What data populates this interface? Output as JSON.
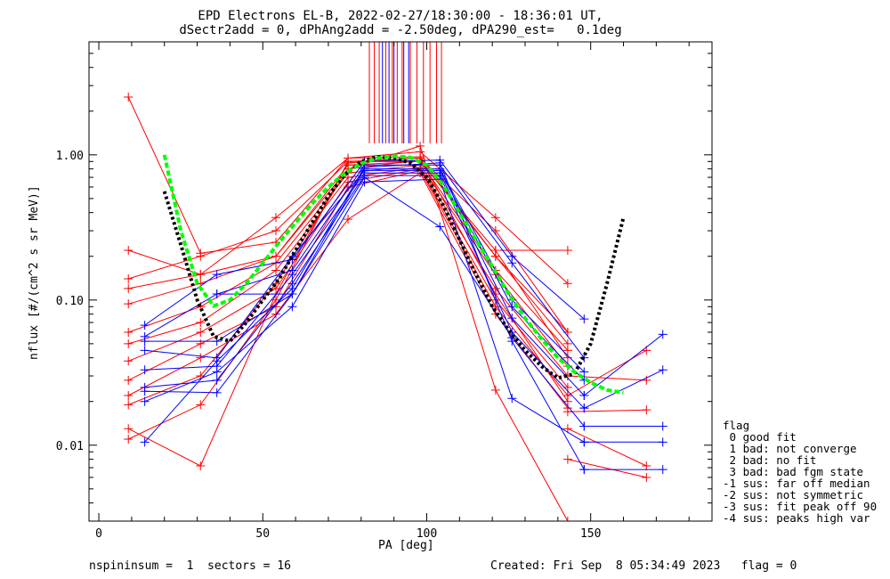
{
  "title_line1": "EPD Electrons EL-B, 2022-02-27/18:30:00 - 18:36:01 UT,",
  "title_line2": "dSectr2add = 0, dPhAng2add = -2.50deg, dPA290_est=   0.1deg",
  "footer": {
    "left": "nspininsum =  1  sectors = 16",
    "right": "Created: Fri Sep  8 05:34:49 2023   flag = 0"
  },
  "legend": {
    "title": "flag",
    "items": [
      " 0 good fit",
      " 1 bad: not converge",
      " 2 bad: no fit",
      " 3 bad: bad fgm state",
      "-1 sus: far off median",
      "-2 sus: not symmetric",
      "-3 sus: fit peak off 90",
      "-4 sus: peaks high var"
    ]
  },
  "colors": {
    "red": "#ff0000",
    "blue": "#0000ff",
    "green": "#00ff00",
    "black": "#000000"
  },
  "chart_data": {
    "type": "line",
    "xlabel": "PA [deg]",
    "ylabel": "nflux [#/(cm^2 s sr MeV)]",
    "xlim": [
      -3,
      187
    ],
    "ylim": [
      0.003,
      6
    ],
    "yscale": "log",
    "xticks": [
      0,
      50,
      100,
      150
    ],
    "yticks": [
      0.01,
      0.1,
      1.0
    ],
    "ytick_labels": [
      "0.01",
      "0.10",
      "1.00"
    ],
    "vertical_lines": {
      "red": [
        82.5,
        84,
        85.5,
        87.5,
        89.5,
        91,
        92.5,
        95,
        97,
        99,
        101,
        103,
        104.5
      ],
      "blue": [
        86.5,
        88.5,
        90,
        93,
        94.5
      ]
    },
    "series": [
      {
        "color": "red",
        "x": [
          9,
          31,
          54,
          76,
          98,
          121,
          143
        ],
        "y": [
          0.22,
          0.15,
          0.37,
          0.95,
          1.05,
          0.37,
          0.13
        ]
      },
      {
        "color": "red",
        "x": [
          9,
          31,
          54,
          76,
          98,
          121,
          143
        ],
        "y": [
          0.14,
          0.2,
          0.3,
          0.9,
          0.95,
          0.3,
          0.06
        ]
      },
      {
        "color": "red",
        "x": [
          9,
          31,
          54,
          76,
          98,
          121,
          143
        ],
        "y": [
          0.12,
          0.15,
          0.2,
          0.85,
          0.9,
          0.22,
          0.04
        ]
      },
      {
        "color": "red",
        "x": [
          9,
          31,
          54,
          76,
          98,
          121,
          143
        ],
        "y": [
          0.094,
          0.13,
          0.2,
          0.8,
          0.92,
          0.2,
          0.05
        ]
      },
      {
        "color": "red",
        "x": [
          9,
          31,
          54,
          76,
          98,
          121,
          143
        ],
        "y": [
          0.06,
          0.09,
          0.18,
          0.75,
          0.85,
          0.15,
          0.035
        ]
      },
      {
        "color": "red",
        "x": [
          9,
          31,
          54,
          76,
          98,
          121,
          143
        ],
        "y": [
          0.05,
          0.07,
          0.16,
          0.7,
          0.82,
          0.12,
          0.03
        ]
      },
      {
        "color": "red",
        "x": [
          9,
          31,
          54,
          76,
          98,
          121,
          143
        ],
        "y": [
          0.038,
          0.06,
          0.12,
          0.65,
          0.8,
          0.1,
          0.025
        ]
      },
      {
        "color": "red",
        "x": [
          9,
          31,
          54,
          76,
          98,
          121,
          143
        ],
        "y": [
          0.028,
          0.05,
          0.09,
          0.6,
          0.78,
          0.09,
          0.022
        ]
      },
      {
        "color": "red",
        "x": [
          9,
          31,
          54,
          76,
          98,
          121,
          143
        ],
        "y": [
          0.022,
          0.04,
          0.08,
          0.36,
          0.75,
          0.08,
          0.018
        ]
      },
      {
        "color": "red",
        "x": [
          9,
          31,
          54,
          76,
          98,
          121,
          143
        ],
        "y": [
          0.019,
          0.03,
          0.13,
          0.8,
          1.15,
          0.024,
          0.003
        ]
      },
      {
        "color": "red",
        "x": [
          9,
          31,
          54,
          76,
          98,
          121,
          143
        ],
        "y": [
          0.013,
          0.0072,
          0.11,
          0.88,
          0.95,
          0.11,
          0.02
        ]
      },
      {
        "color": "red",
        "x": [
          9,
          31,
          54,
          76,
          98,
          121,
          143
        ],
        "y": [
          0.011,
          0.019,
          0.1,
          0.9,
          0.9,
          0.16,
          0.045
        ]
      },
      {
        "color": "red",
        "x": [
          9,
          31,
          54,
          76,
          98,
          121,
          143
        ],
        "y": [
          2.5,
          0.21,
          0.25,
          0.95,
          0.97,
          0.2,
          0.06
        ]
      },
      {
        "color": "red",
        "x": [
          121,
          143
        ],
        "y": [
          0.22,
          0.22
        ]
      },
      {
        "color": "red",
        "x": [
          143,
          167
        ],
        "y": [
          0.022,
          0.045
        ]
      },
      {
        "color": "red",
        "x": [
          143,
          167
        ],
        "y": [
          0.03,
          0.028
        ]
      },
      {
        "color": "red",
        "x": [
          143,
          167
        ],
        "y": [
          0.017,
          0.0175
        ]
      },
      {
        "color": "red",
        "x": [
          143,
          167
        ],
        "y": [
          0.013,
          0.0072
        ]
      },
      {
        "color": "red",
        "x": [
          143,
          167
        ],
        "y": [
          0.008,
          0.006
        ]
      },
      {
        "color": "blue",
        "x": [
          14,
          36,
          59,
          81,
          104,
          126,
          148
        ],
        "y": [
          0.067,
          0.15,
          0.19,
          0.9,
          0.92,
          0.2,
          0.074
        ]
      },
      {
        "color": "blue",
        "x": [
          14,
          36,
          59,
          81,
          104,
          126,
          148
        ],
        "y": [
          0.056,
          0.11,
          0.16,
          0.85,
          0.85,
          0.18,
          0.04
        ]
      },
      {
        "color": "blue",
        "x": [
          14,
          36,
          59,
          81,
          104,
          126,
          148
        ],
        "y": [
          0.052,
          0.052,
          0.11,
          0.8,
          0.8,
          0.1,
          0.032
        ]
      },
      {
        "color": "blue",
        "x": [
          14,
          36,
          59,
          81,
          104,
          126,
          148
        ],
        "y": [
          0.045,
          0.04,
          0.2,
          0.78,
          0.78,
          0.09,
          0.028
        ]
      },
      {
        "color": "blue",
        "x": [
          14,
          36,
          59,
          81,
          104,
          126,
          148
        ],
        "y": [
          0.033,
          0.035,
          0.15,
          0.75,
          0.75,
          0.075,
          0.022
        ]
      },
      {
        "color": "blue",
        "x": [
          14,
          36,
          59,
          81,
          104,
          126,
          148
        ],
        "y": [
          0.025,
          0.028,
          0.13,
          0.72,
          0.72,
          0.06,
          0.018
        ]
      },
      {
        "color": "blue",
        "x": [
          14,
          36,
          59,
          81,
          104,
          126,
          148
        ],
        "y": [
          0.0235,
          0.023,
          0.11,
          0.7,
          0.32,
          0.055,
          0.0135
        ]
      },
      {
        "color": "blue",
        "x": [
          14,
          36,
          59,
          81,
          104,
          126,
          148
        ],
        "y": [
          0.02,
          0.032,
          0.09,
          0.65,
          0.68,
          0.021,
          0.0105
        ]
      },
      {
        "color": "blue",
        "x": [
          14,
          36,
          59,
          81,
          104,
          126,
          148
        ],
        "y": [
          0.0105,
          0.038,
          0.12,
          0.82,
          0.88,
          0.052,
          0.0068
        ]
      },
      {
        "color": "blue",
        "x": [
          36,
          59
        ],
        "y": [
          0.11,
          0.11
        ]
      },
      {
        "color": "blue",
        "x": [
          148,
          172
        ],
        "y": [
          0.0135,
          0.0135
        ]
      },
      {
        "color": "blue",
        "x": [
          148,
          172
        ],
        "y": [
          0.0105,
          0.0105
        ]
      },
      {
        "color": "blue",
        "x": [
          148,
          172
        ],
        "y": [
          0.0068,
          0.0068
        ]
      },
      {
        "color": "blue",
        "x": [
          148,
          172
        ],
        "y": [
          0.022,
          0.058
        ]
      },
      {
        "color": "blue",
        "x": [
          148,
          172
        ],
        "y": [
          0.018,
          0.033
        ]
      }
    ],
    "fits": [
      {
        "color": "black",
        "style": "dotted",
        "x": [
          20,
          25,
          30,
          35,
          40,
          45,
          50,
          55,
          60,
          65,
          70,
          75,
          80,
          85,
          90,
          95,
          100,
          105,
          110,
          115,
          120,
          125,
          130,
          135,
          140,
          145,
          150,
          155,
          160
        ],
        "y": [
          0.56,
          0.24,
          0.1,
          0.056,
          0.052,
          0.07,
          0.1,
          0.14,
          0.22,
          0.34,
          0.52,
          0.73,
          0.9,
          0.97,
          0.95,
          0.88,
          0.7,
          0.45,
          0.26,
          0.15,
          0.09,
          0.062,
          0.045,
          0.035,
          0.029,
          0.031,
          0.05,
          0.13,
          0.37
        ]
      },
      {
        "color": "green",
        "style": "dashed",
        "x": [
          20,
          25,
          30,
          35,
          40,
          45,
          50,
          55,
          60,
          65,
          70,
          75,
          80,
          85,
          90,
          95,
          100,
          105,
          110,
          115,
          120,
          125,
          130,
          135,
          140,
          145,
          150,
          155,
          160
        ],
        "y": [
          1.0,
          0.3,
          0.13,
          0.091,
          0.1,
          0.13,
          0.18,
          0.25,
          0.34,
          0.46,
          0.6,
          0.75,
          0.87,
          0.95,
          0.98,
          0.96,
          0.85,
          0.62,
          0.4,
          0.26,
          0.17,
          0.11,
          0.075,
          0.054,
          0.04,
          0.032,
          0.027,
          0.024,
          0.023
        ]
      }
    ]
  }
}
